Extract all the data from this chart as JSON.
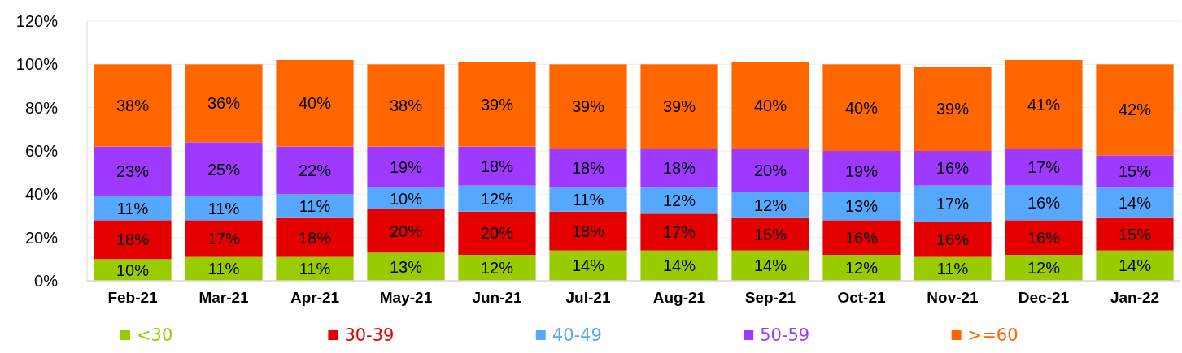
{
  "chart_data": {
    "type": "bar",
    "stacked": true,
    "categories": [
      "Feb-21",
      "Mar-21",
      "Apr-21",
      "May-21",
      "Jun-21",
      "Jul-21",
      "Aug-21",
      "Sep-21",
      "Oct-21",
      "Nov-21",
      "Dec-21",
      "Jan-22"
    ],
    "series": [
      {
        "name": "<30",
        "color": "#99cc00",
        "values": [
          10,
          11,
          11,
          13,
          12,
          14,
          14,
          14,
          12,
          11,
          12,
          14
        ],
        "value_labels": [
          "10%",
          "11%",
          "11%",
          "13%",
          "12%",
          "14%",
          "14%",
          "14%",
          "12%",
          "11%",
          "12%",
          "14%"
        ]
      },
      {
        "name": "30-39",
        "color": "#e50000",
        "values": [
          18,
          17,
          18,
          20,
          20,
          18,
          17,
          15,
          16,
          16,
          16,
          15
        ],
        "value_labels": [
          "18%",
          "17%",
          "18%",
          "20%",
          "20%",
          "18%",
          "17%",
          "15%",
          "16%",
          "16%",
          "16%",
          "15%"
        ]
      },
      {
        "name": "40-49",
        "color": "#56a8ff",
        "values": [
          11,
          11,
          11,
          10,
          12,
          11,
          12,
          12,
          13,
          17,
          16,
          14
        ],
        "value_labels": [
          "11%",
          "11%",
          "11%",
          "10%",
          "12%",
          "11%",
          "12%",
          "12%",
          "13%",
          "17%",
          "16%",
          "14%"
        ]
      },
      {
        "name": "50-59",
        "color": "#9e3aff",
        "values": [
          23,
          25,
          22,
          19,
          18,
          18,
          18,
          20,
          19,
          16,
          17,
          15
        ],
        "value_labels": [
          "23%",
          "25%",
          "22%",
          "19%",
          "18%",
          "18%",
          "18%",
          "20%",
          "19%",
          "16%",
          "17%",
          "15%"
        ]
      },
      {
        "name": ">=60",
        "color": "#ff6600",
        "values": [
          38,
          36,
          40,
          38,
          39,
          39,
          39,
          40,
          40,
          39,
          41,
          42
        ],
        "value_labels": [
          "38%",
          "36%",
          "40%",
          "38%",
          "39%",
          "39%",
          "39%",
          "40%",
          "40%",
          "39%",
          "41%",
          "42%"
        ]
      }
    ],
    "ylim": [
      0,
      120
    ],
    "yticks": [
      {
        "value": 0,
        "label": "0%"
      },
      {
        "value": 20,
        "label": "20%"
      },
      {
        "value": 40,
        "label": "40%"
      },
      {
        "value": 60,
        "label": "60%"
      },
      {
        "value": 80,
        "label": "80%"
      },
      {
        "value": 100,
        "label": "100%"
      },
      {
        "value": 120,
        "label": "120%"
      }
    ],
    "grid": "y",
    "legend": "bottom"
  }
}
